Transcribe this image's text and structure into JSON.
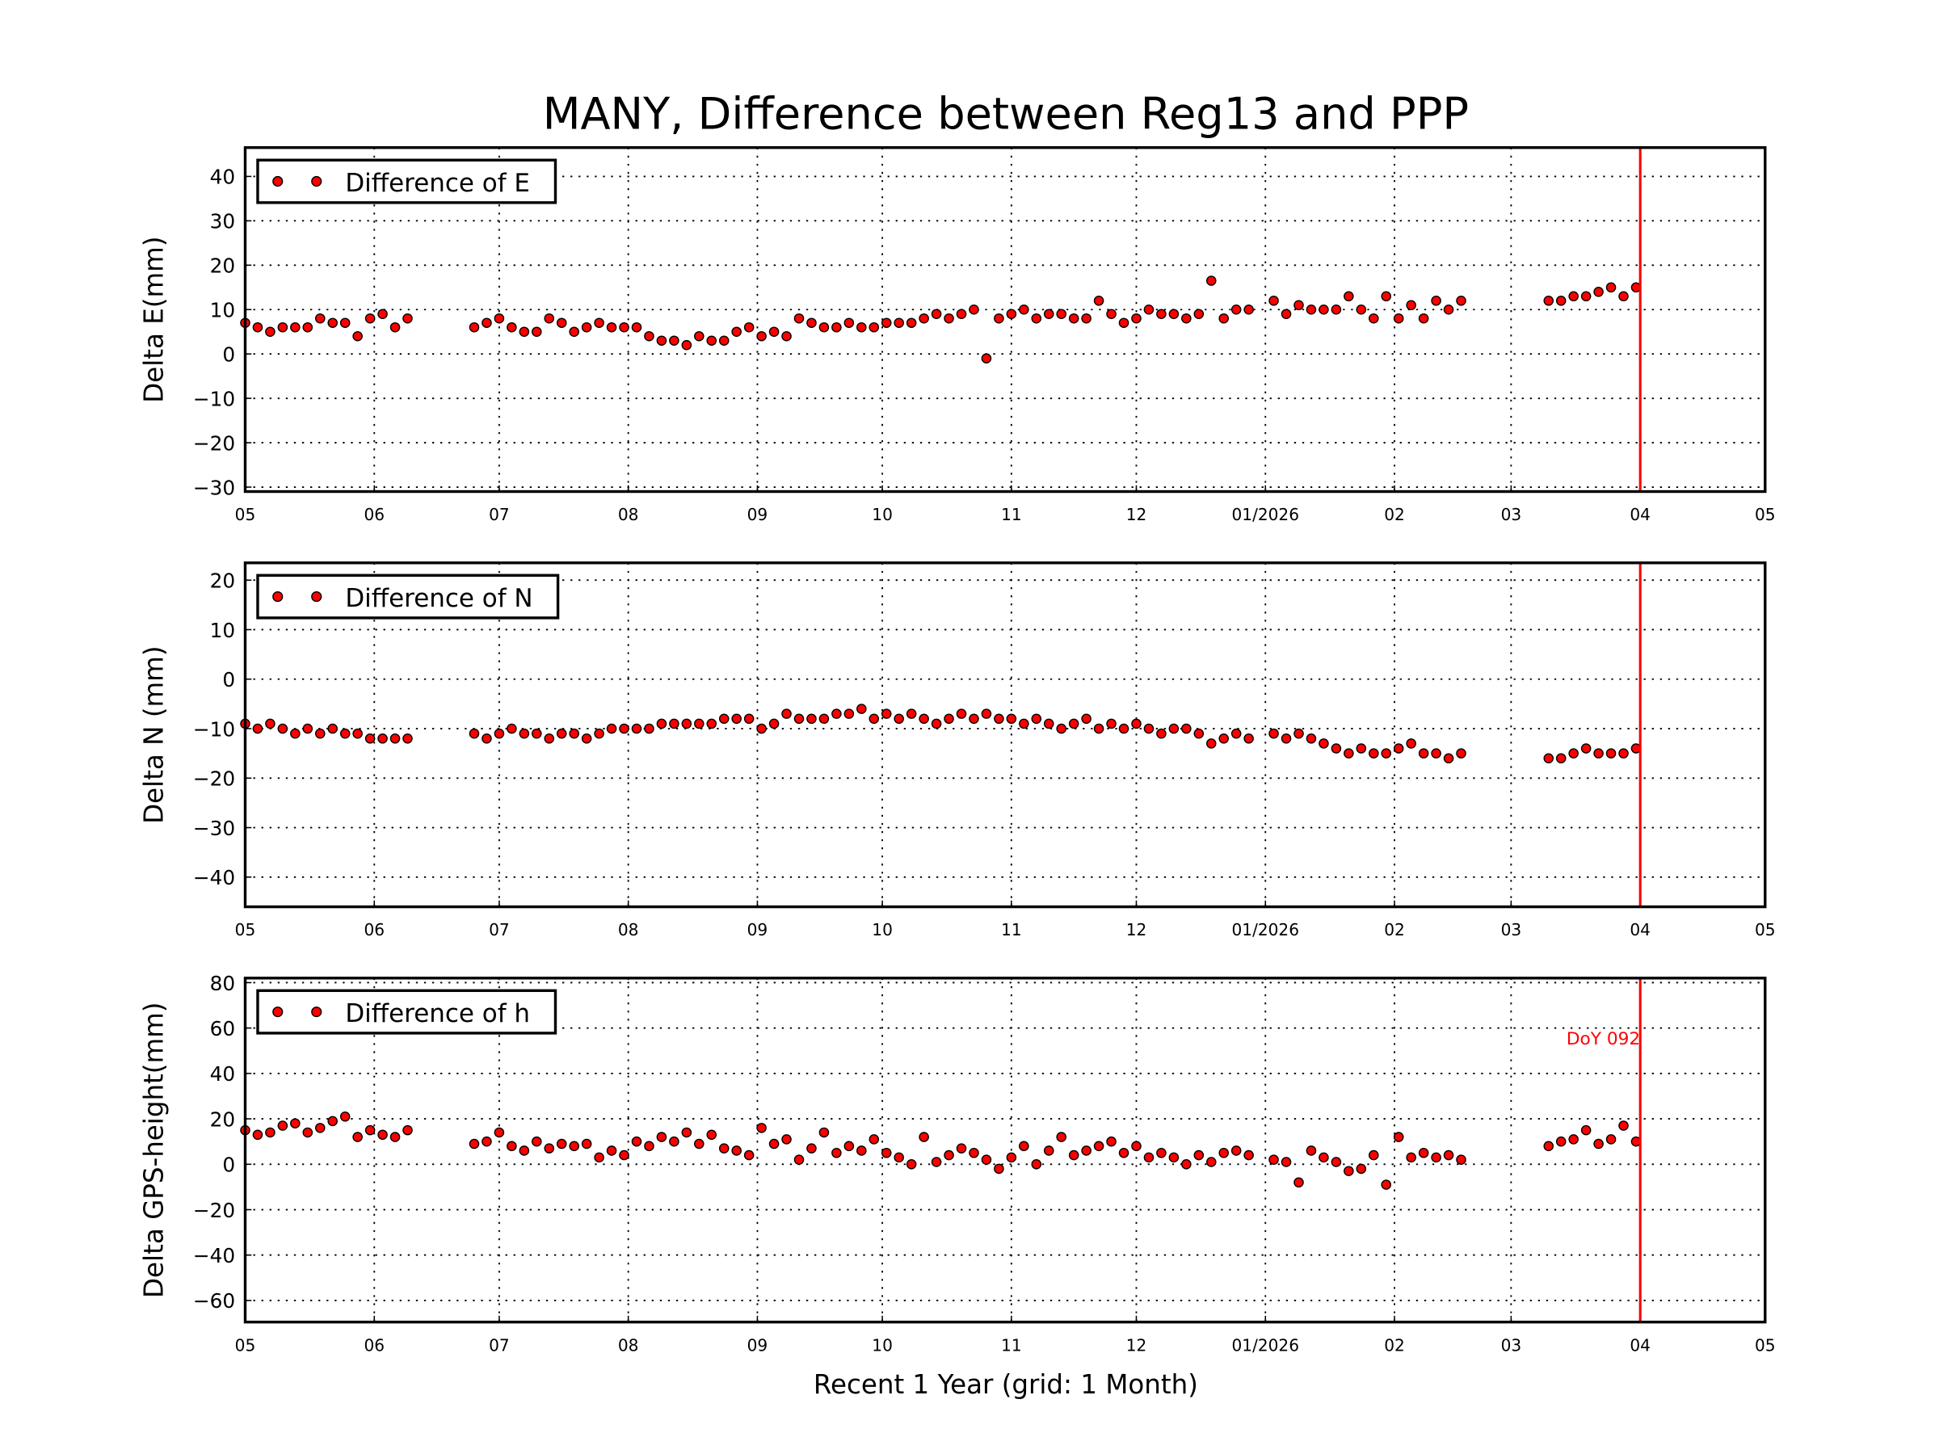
{
  "title": "MANY, Difference between Reg13 and PPP",
  "xlabel": "Recent 1 Year (grid: 1 Month)",
  "colors": {
    "marker": "#ff0000",
    "marker_edge": "#000000",
    "event_line": "#ff0000"
  },
  "event": {
    "date": "2026-04-02",
    "label": "DoY 092"
  },
  "chart_data": [
    {
      "type": "scatter",
      "ylabel": "Delta E(mm)",
      "legend": "Difference of E",
      "legend_position": "top-left",
      "grid": true,
      "xlim": [
        "2025-05-01",
        "2026-05-01"
      ],
      "xticks": [
        "2025-05-01",
        "2025-06-01",
        "2025-07-01",
        "2025-08-01",
        "2025-09-01",
        "2025-10-01",
        "2025-11-01",
        "2025-12-01",
        "2026-01-01",
        "2026-02-01",
        "2026-03-01",
        "2026-04-01",
        "2026-05-01"
      ],
      "xticklabels": [
        "05",
        "06",
        "07",
        "08",
        "09",
        "10",
        "11",
        "12",
        "01/2026",
        "02",
        "03",
        "04",
        "05"
      ],
      "ylim": [
        -31,
        46.5
      ],
      "yticks": [
        -30,
        -20,
        -10,
        0,
        10,
        20,
        30,
        40
      ],
      "yticklabels": [
        "−30",
        "−20",
        "−10",
        "0",
        "10",
        "20",
        "30",
        "40"
      ],
      "values": [
        7,
        6,
        5,
        6,
        6,
        6,
        8,
        7,
        7,
        4,
        8,
        9,
        6,
        8,
        6,
        7,
        8,
        6,
        5,
        5,
        8,
        7,
        5,
        6,
        7,
        6,
        6,
        6,
        4,
        3,
        3,
        2,
        4,
        3,
        3,
        5,
        6,
        4,
        5,
        4,
        8,
        7,
        6,
        6,
        7,
        6,
        6,
        7,
        7,
        7,
        8,
        9,
        8,
        9,
        10,
        -1,
        8,
        9,
        10,
        8,
        9,
        9,
        8,
        8,
        12,
        9,
        7,
        8,
        10,
        9,
        9,
        8,
        9,
        16.5,
        8,
        10,
        10,
        12,
        9,
        11,
        10,
        10,
        10,
        13,
        10,
        8,
        13,
        8,
        11,
        8,
        12,
        10,
        12,
        12,
        12,
        13,
        13,
        14,
        15,
        13,
        15
      ]
    },
    {
      "type": "scatter",
      "ylabel": "Delta N (mm)",
      "legend": "Difference of N",
      "legend_position": "top-left",
      "grid": true,
      "xlim": [
        "2025-05-01",
        "2026-05-01"
      ],
      "xticks": [
        "2025-05-01",
        "2025-06-01",
        "2025-07-01",
        "2025-08-01",
        "2025-09-01",
        "2025-10-01",
        "2025-11-01",
        "2025-12-01",
        "2026-01-01",
        "2026-02-01",
        "2026-03-01",
        "2026-04-01",
        "2026-05-01"
      ],
      "xticklabels": [
        "05",
        "06",
        "07",
        "08",
        "09",
        "10",
        "11",
        "12",
        "01/2026",
        "02",
        "03",
        "04",
        "05"
      ],
      "ylim": [
        -46,
        23.5
      ],
      "yticks": [
        -40,
        -30,
        -20,
        -10,
        0,
        10,
        20
      ],
      "yticklabels": [
        "−40",
        "−30",
        "−20",
        "−10",
        "0",
        "10",
        "20"
      ],
      "values": [
        -9,
        -10,
        -9,
        -10,
        -11,
        -10,
        -11,
        -10,
        -11,
        -11,
        -12,
        -12,
        -12,
        -12,
        -11,
        -12,
        -11,
        -10,
        -11,
        -11,
        -12,
        -11,
        -11,
        -12,
        -11,
        -10,
        -10,
        -10,
        -10,
        -9,
        -9,
        -9,
        -9,
        -9,
        -8,
        -8,
        -8,
        -10,
        -9,
        -7,
        -8,
        -8,
        -8,
        -7,
        -7,
        -6,
        -8,
        -7,
        -8,
        -7,
        -8,
        -9,
        -8,
        -7,
        -8,
        -7,
        -8,
        -8,
        -9,
        -8,
        -9,
        -10,
        -9,
        -8,
        -10,
        -9,
        -10,
        -9,
        -10,
        -11,
        -10,
        -10,
        -11,
        -13,
        -12,
        -11,
        -12,
        -11,
        -12,
        -11,
        -12,
        -13,
        -14,
        -15,
        -14,
        -15,
        -15,
        -14,
        -13,
        -15,
        -15,
        -16,
        -15,
        -16,
        -16,
        -15,
        -14,
        -15,
        -15,
        -15,
        -14
      ]
    },
    {
      "type": "scatter",
      "ylabel": "Delta GPS-height(mm)",
      "legend": "Difference of h",
      "legend_position": "top-left",
      "grid": true,
      "xlim": [
        "2025-05-01",
        "2026-05-01"
      ],
      "xticks": [
        "2025-05-01",
        "2025-06-01",
        "2025-07-01",
        "2025-08-01",
        "2025-09-01",
        "2025-10-01",
        "2025-11-01",
        "2025-12-01",
        "2026-01-01",
        "2026-02-01",
        "2026-03-01",
        "2026-04-01",
        "2026-05-01"
      ],
      "xticklabels": [
        "05",
        "06",
        "07",
        "08",
        "09",
        "10",
        "11",
        "12",
        "01/2026",
        "02",
        "03",
        "04",
        "05"
      ],
      "ylim": [
        -69.5,
        82
      ],
      "yticks": [
        -60,
        -40,
        -20,
        0,
        20,
        40,
        60,
        80
      ],
      "yticklabels": [
        "−60",
        "−40",
        "−20",
        "0",
        "20",
        "40",
        "60",
        "80"
      ],
      "values": [
        15,
        13,
        14,
        17,
        18,
        14,
        16,
        19,
        21,
        12,
        15,
        13,
        12,
        15,
        9,
        10,
        14,
        8,
        6,
        10,
        7,
        9,
        8,
        9,
        3,
        6,
        4,
        10,
        8,
        12,
        10,
        14,
        9,
        13,
        7,
        6,
        4,
        16,
        9,
        11,
        2,
        7,
        14,
        5,
        8,
        6,
        11,
        5,
        3,
        0,
        12,
        1,
        4,
        7,
        5,
        2,
        -2,
        3,
        8,
        0,
        6,
        12,
        4,
        6,
        8,
        10,
        5,
        8,
        3,
        5,
        3,
        0,
        4,
        1,
        5,
        6,
        4,
        2,
        1,
        -8,
        6,
        3,
        1,
        -3,
        -2,
        4,
        -9,
        12,
        3,
        5,
        3,
        4,
        2,
        8,
        10,
        11,
        15,
        9,
        11,
        17,
        10
      ]
    }
  ],
  "dates": [
    "2025-05-01",
    "2025-05-04",
    "2025-05-07",
    "2025-05-10",
    "2025-05-13",
    "2025-05-16",
    "2025-05-19",
    "2025-05-22",
    "2025-05-25",
    "2025-05-28",
    "2025-05-31",
    "2025-06-03",
    "2025-06-06",
    "2025-06-09",
    "2025-06-25",
    "2025-06-28",
    "2025-07-01",
    "2025-07-04",
    "2025-07-07",
    "2025-07-10",
    "2025-07-13",
    "2025-07-16",
    "2025-07-19",
    "2025-07-22",
    "2025-07-25",
    "2025-07-28",
    "2025-07-31",
    "2025-08-03",
    "2025-08-06",
    "2025-08-09",
    "2025-08-12",
    "2025-08-15",
    "2025-08-18",
    "2025-08-21",
    "2025-08-24",
    "2025-08-27",
    "2025-08-30",
    "2025-09-02",
    "2025-09-05",
    "2025-09-08",
    "2025-09-11",
    "2025-09-14",
    "2025-09-17",
    "2025-09-20",
    "2025-09-23",
    "2025-09-26",
    "2025-09-29",
    "2025-10-02",
    "2025-10-05",
    "2025-10-08",
    "2025-10-11",
    "2025-10-14",
    "2025-10-17",
    "2025-10-20",
    "2025-10-23",
    "2025-10-26",
    "2025-10-29",
    "2025-11-01",
    "2025-11-04",
    "2025-11-07",
    "2025-11-10",
    "2025-11-13",
    "2025-11-16",
    "2025-11-19",
    "2025-11-22",
    "2025-11-25",
    "2025-11-28",
    "2025-12-01",
    "2025-12-04",
    "2025-12-07",
    "2025-12-10",
    "2025-12-13",
    "2025-12-16",
    "2025-12-19",
    "2025-12-22",
    "2025-12-25",
    "2025-12-28",
    "2026-01-03",
    "2026-01-06",
    "2026-01-09",
    "2026-01-12",
    "2026-01-15",
    "2026-01-18",
    "2026-01-21",
    "2026-01-24",
    "2026-01-27",
    "2026-01-30",
    "2026-02-02",
    "2026-02-05",
    "2026-02-08",
    "2026-02-11",
    "2026-02-14",
    "2026-02-17",
    "2026-03-10",
    "2026-03-13",
    "2026-03-16",
    "2026-03-19",
    "2026-03-22",
    "2026-03-25",
    "2026-03-28",
    "2026-03-31"
  ]
}
